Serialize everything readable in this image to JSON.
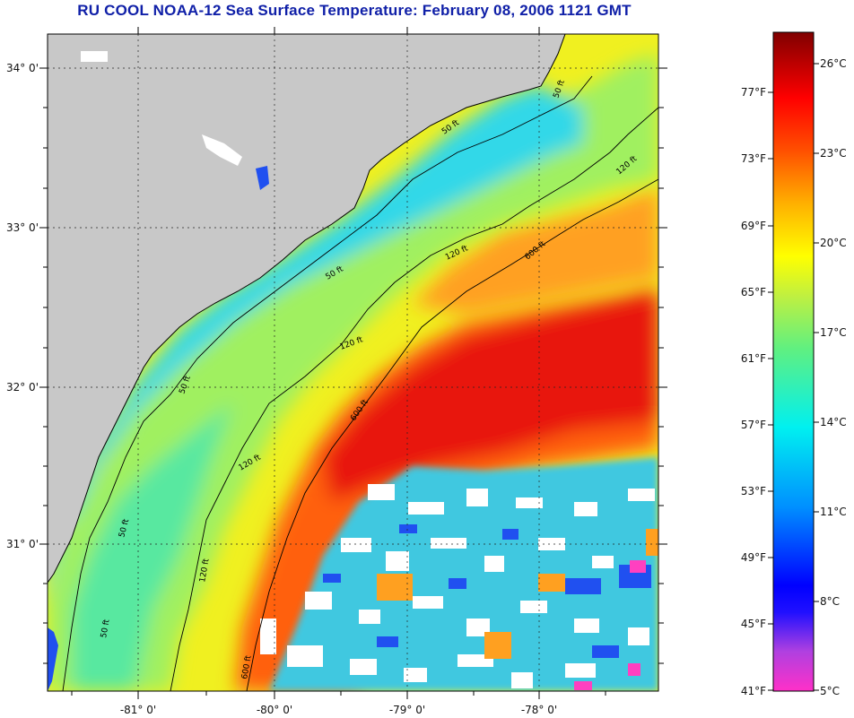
{
  "title": "RU COOL  NOAA-12  Sea Surface Temperature:  February 08, 2006 1121 GMT",
  "map": {
    "lat_labels": [
      "34° 0'",
      "33° 0'",
      "32° 0'",
      "31° 0'"
    ],
    "lon_labels": [
      "-81° 0'",
      "-80° 0'",
      "-79° 0'",
      "-78° 0'"
    ],
    "contour_labels": [
      "50 ft",
      "50 ft",
      "50 ft",
      "50 ft",
      "50 ft",
      "50 ft",
      "120 ft",
      "120 ft",
      "120 ft",
      "120 ft",
      "120 ft",
      "600 ft",
      "600 ft",
      "600 ft"
    ],
    "colors": {
      "land": "#c8c8c8",
      "nearshore": "#18d8f0",
      "mid_shelf": "#8cf070",
      "outer_shelf": "#f0f020",
      "gulf_stream": "#f03010",
      "cloud": "#ffffff"
    }
  },
  "colorbar": {
    "fahrenheit_labels": [
      "77°F",
      "73°F",
      "69°F",
      "65°F",
      "61°F",
      "57°F",
      "53°F",
      "49°F",
      "45°F",
      "41°F"
    ],
    "celsius_labels": [
      "26°C",
      "23°C",
      "20°C",
      "17°C",
      "14°C",
      "11°C",
      "8°C",
      "5°C"
    ]
  }
}
